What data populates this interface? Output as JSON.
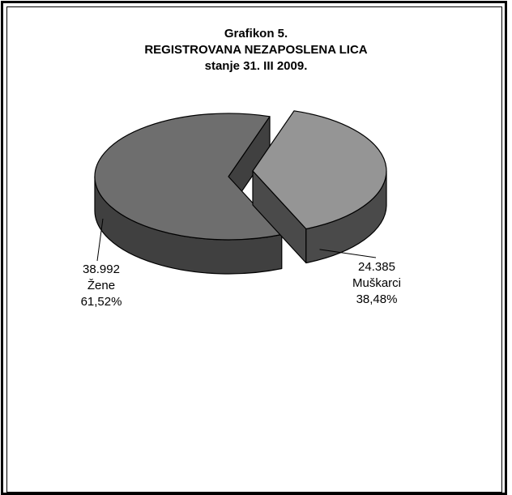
{
  "chart_data": {
    "type": "pie",
    "title": "Grafikon 5.",
    "subtitle": "REGISTROVANA NEZAPOSLENA LICA",
    "subtitle2": "stanje 31. III 2009.",
    "slices": [
      {
        "name": "Žene",
        "value": 38992,
        "value_label": "38.992",
        "percent": 61.52,
        "percent_label": "61,52%"
      },
      {
        "name": "Muškarci",
        "value": 24385,
        "value_label": "24.385",
        "percent": 38.48,
        "percent_label": "38,48%"
      }
    ],
    "style": "3d-exploded",
    "colors": {
      "zene_top": "#6e6e6e",
      "zene_side": "#404040",
      "muskarci_top": "#959595",
      "muskarci_side": "#4a4a4a",
      "outline": "#000000"
    },
    "legend": "none"
  }
}
